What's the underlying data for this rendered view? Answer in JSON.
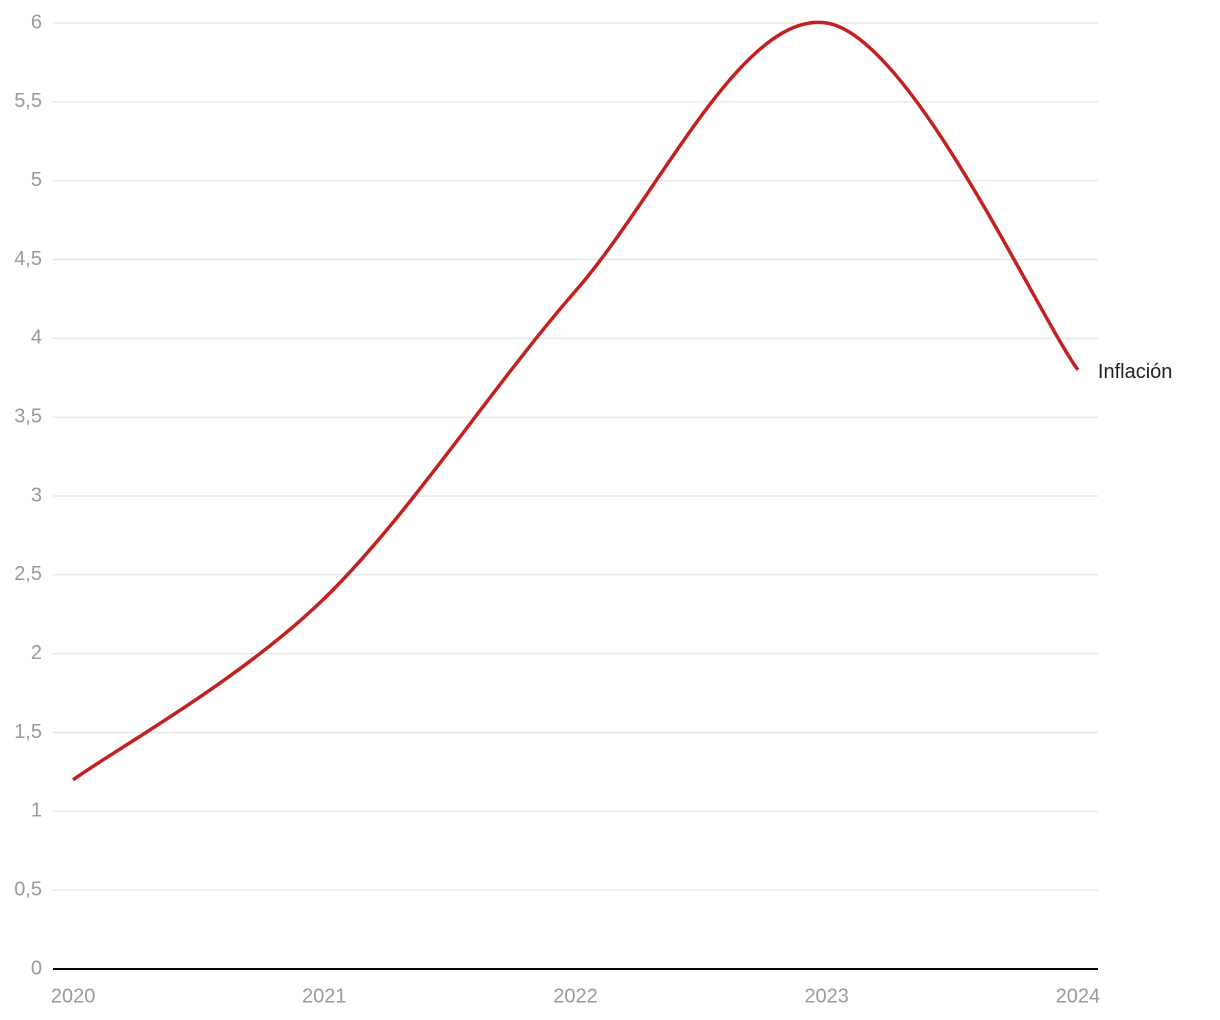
{
  "chart_data": {
    "type": "line",
    "x": [
      2020,
      2021,
      2022,
      2023,
      2024
    ],
    "series": [
      {
        "name": "Inflación",
        "color": "#c4201f",
        "values": [
          1.2,
          2.35,
          4.3,
          6.0,
          3.8
        ]
      }
    ],
    "xlim": [
      2019.92,
      2024.08
    ],
    "xticks": [
      2020,
      2021,
      2022,
      2023,
      2024
    ],
    "ylim": [
      0,
      6
    ],
    "yticks": [
      0,
      {
        "value": 0.5,
        "label": "0,5"
      },
      1,
      {
        "value": 1.5,
        "label": "1,5"
      },
      2,
      {
        "value": 2.5,
        "label": "2,5"
      },
      3,
      {
        "value": 3.5,
        "label": "3,5"
      },
      4,
      {
        "value": 4.5,
        "label": "4,5"
      },
      5,
      {
        "value": 5.5,
        "label": "5,5"
      },
      6
    ],
    "grid": true
  }
}
